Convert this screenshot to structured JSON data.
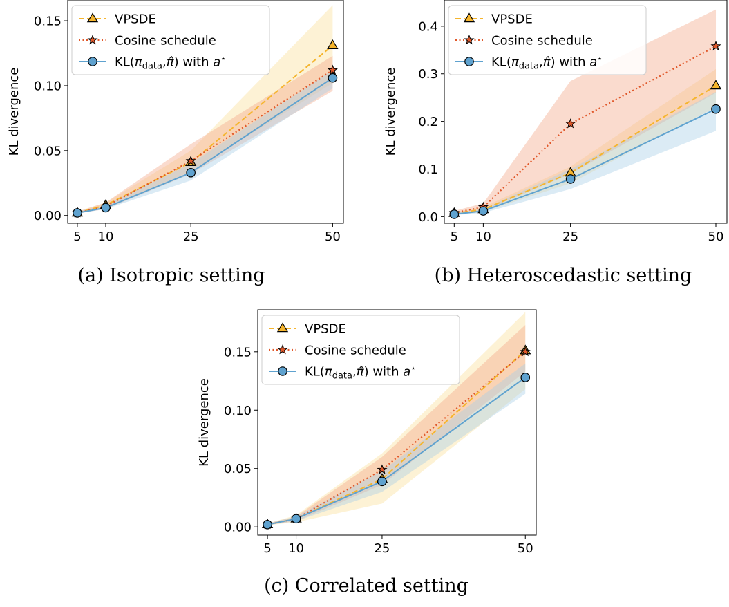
{
  "colors": {
    "vpsde": "#f5b52e",
    "cosine": "#e0582a",
    "kl": "#5fa2cf",
    "vpsde_band": "#fbdf9a",
    "cosine_band": "#f3a98a",
    "kl_band": "#a9cfe8",
    "axis": "#000000"
  },
  "legend": {
    "vpsde": "VPSDE",
    "cosine": "Cosine schedule",
    "kl_prefix": "KL(",
    "kl_pi": "π",
    "kl_data": "data",
    "kl_comma": ",",
    "kl_pihat": "π̂",
    "kl_mid": ") with ",
    "kl_a": "a",
    "kl_star": "⋆"
  },
  "chart_data": [
    {
      "type": "line",
      "caption": "(a) Isotropic setting",
      "ylabel": "KL divergence",
      "xlabel": "",
      "x": [
        5,
        10,
        25,
        50
      ],
      "xticks": [
        "5",
        "10",
        "25",
        "50"
      ],
      "xlim": [
        3.3,
        51.9
      ],
      "ylim": [
        -0.006,
        0.166
      ],
      "yticks": [
        0.0,
        0.05,
        0.1,
        0.15
      ],
      "ytick_labels": [
        "0.00",
        "0.05",
        "0.10",
        "0.15"
      ],
      "legend_position": "top-left",
      "grid": false,
      "series": [
        {
          "name": "VPSDE",
          "key": "vpsde",
          "values": [
            0.002,
            0.008,
            0.041,
            0.131
          ],
          "lower": [
            0.0015,
            0.006,
            0.034,
            0.102
          ],
          "upper": [
            0.003,
            0.01,
            0.05,
            0.162
          ]
        },
        {
          "name": "Cosine schedule",
          "key": "cosine",
          "values": [
            0.002,
            0.007,
            0.042,
            0.112
          ],
          "lower": [
            0.0015,
            0.005,
            0.032,
            0.096
          ],
          "upper": [
            0.003,
            0.01,
            0.055,
            0.123
          ]
        },
        {
          "name": "KL(π_data, π̂) with a*",
          "key": "kl",
          "values": [
            0.002,
            0.006,
            0.033,
            0.106
          ],
          "lower": [
            0.0015,
            0.005,
            0.027,
            0.098
          ],
          "upper": [
            0.003,
            0.008,
            0.04,
            0.112
          ]
        }
      ]
    },
    {
      "type": "line",
      "caption": "(b) Heteroscedastic setting",
      "ylabel": "KL divergence",
      "xlabel": "",
      "x": [
        5,
        10,
        25,
        50
      ],
      "xticks": [
        "5",
        "10",
        "25",
        "50"
      ],
      "xlim": [
        3.3,
        51.9
      ],
      "ylim": [
        -0.014,
        0.455
      ],
      "yticks": [
        0.0,
        0.1,
        0.2,
        0.3,
        0.4
      ],
      "ytick_labels": [
        "0.0",
        "0.1",
        "0.2",
        "0.3",
        "0.4"
      ],
      "legend_position": "top-left",
      "grid": false,
      "series": [
        {
          "name": "VPSDE",
          "key": "vpsde",
          "values": [
            0.007,
            0.015,
            0.092,
            0.275
          ],
          "lower": [
            0.004,
            0.01,
            0.07,
            0.23
          ],
          "upper": [
            0.01,
            0.02,
            0.105,
            0.31
          ]
        },
        {
          "name": "Cosine schedule",
          "key": "cosine",
          "values": [
            0.008,
            0.02,
            0.195,
            0.358
          ],
          "lower": [
            0.004,
            0.012,
            0.09,
            0.26
          ],
          "upper": [
            0.012,
            0.028,
            0.285,
            0.435
          ]
        },
        {
          "name": "KL(π_data, π̂) with a*",
          "key": "kl",
          "values": [
            0.005,
            0.012,
            0.079,
            0.226
          ],
          "lower": [
            0.003,
            0.008,
            0.058,
            0.18
          ],
          "upper": [
            0.008,
            0.016,
            0.1,
            0.262
          ]
        }
      ]
    },
    {
      "type": "line",
      "caption": "(c) Correlated setting",
      "ylabel": "KL divergence",
      "xlabel": "",
      "x": [
        5,
        10,
        25,
        50
      ],
      "xticks": [
        "5",
        "10",
        "25",
        "50"
      ],
      "xlim": [
        3.3,
        51.9
      ],
      "ylim": [
        -0.007,
        0.186
      ],
      "yticks": [
        0.0,
        0.05,
        0.1,
        0.15
      ],
      "ytick_labels": [
        "0.00",
        "0.05",
        "0.10",
        "0.15"
      ],
      "legend_position": "top-left",
      "grid": false,
      "series": [
        {
          "name": "VPSDE",
          "key": "vpsde",
          "values": [
            0.002,
            0.007,
            0.041,
            0.151
          ],
          "lower": [
            0.0015,
            0.004,
            0.02,
            0.118
          ],
          "upper": [
            0.003,
            0.01,
            0.063,
            0.184
          ]
        },
        {
          "name": "Cosine schedule",
          "key": "cosine",
          "values": [
            0.002,
            0.007,
            0.049,
            0.15
          ],
          "lower": [
            0.0015,
            0.005,
            0.036,
            0.133
          ],
          "upper": [
            0.003,
            0.009,
            0.06,
            0.173
          ]
        },
        {
          "name": "KL(π_data, π̂) with a*",
          "key": "kl",
          "values": [
            0.002,
            0.007,
            0.039,
            0.128
          ],
          "lower": [
            0.0015,
            0.005,
            0.03,
            0.114
          ],
          "upper": [
            0.003,
            0.009,
            0.048,
            0.14
          ]
        }
      ]
    }
  ]
}
